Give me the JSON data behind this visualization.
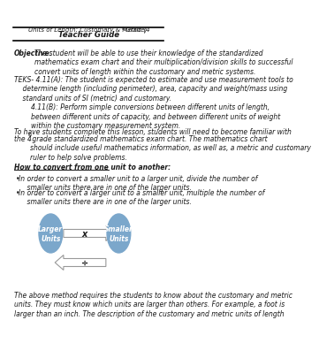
{
  "title_line1": "Units of Length: Customary & Metric (4",
  "title_superscript": "th",
  "title_line1_end": " Grade)",
  "title_line2": "Teacher Guide",
  "objective_bold": "Objective:",
  "objective_text": " The student will be able to use their knowledge of the standardized\nmathematics exam chart and their multiplication/division skills to successful\nconvert units of length within the customary and metric systems.",
  "teks_text": "TEKS- 4.11(A): The student is expected to estimate and use measurement tools to\n    determine length (including perimeter), area, capacity and weight/mass using\n    standard units of SI (metric) and customary.\n        4.11(B): Perform simple conversions between different units of length,\n        between different units of capacity, and between different units of weight\n        within the customary measurement system.",
  "para2_line1": "To have students complete this lesson, students will need to become familiar with",
  "para2_line2": "the 4",
  "para2_super": "th",
  "para2_end": " grade standardized mathematics exam chart. The mathematics chart\nshould include useful mathematics information, as well as, a metric and customary\nruler to help solve problems.",
  "how_to_bold": "How to convert from one unit to another:",
  "bullet1": "In order to convert a smaller unit to a larger unit, divide the number of\n    smaller units there are in one of the larger units.",
  "bullet2": "In order to convert a larger unit to a smaller unit, multiple the number of\n    smaller units there are in one of the larger units.",
  "circle_left_text": "Larger\nUnits",
  "circle_right_text": "Smaller\nUnits",
  "arrow_x_label": "x",
  "arrow_div_label": "÷",
  "circle_color": "#7ba7cb",
  "circle_text_color": "#ffffff",
  "final_text": "The above method requires the students to know about the customary and metric\nunits. They must know which units are larger than others. For example, a foot is\nlarger than an inch. The description of the customary and metric units of length",
  "bg_color": "#ffffff",
  "text_color": "#1a1a1a",
  "line_color": "#000000",
  "font_size_body": 5.5,
  "font_size_title": 5.0,
  "font_size_heading": 6.2
}
